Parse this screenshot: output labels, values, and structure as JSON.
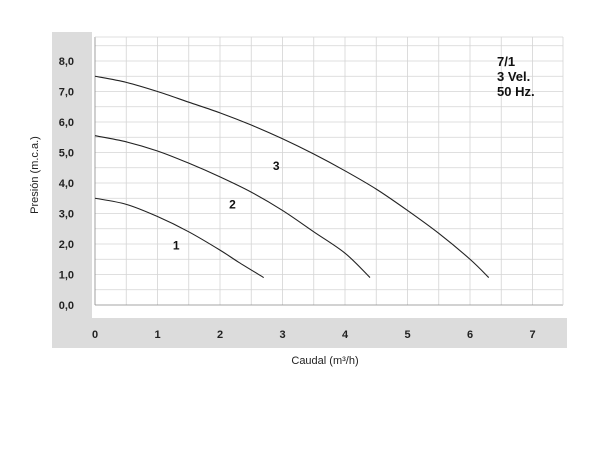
{
  "chart_data": {
    "type": "line",
    "title": "",
    "xlabel": "Caudal (m³/h)",
    "ylabel": "Presión (m.c.a.)",
    "xlim": [
      0,
      7.5
    ],
    "ylim": [
      0,
      8.8
    ],
    "grid": true,
    "x_ticks": [
      0,
      1,
      2,
      3,
      4,
      5,
      6,
      7
    ],
    "x_tick_labels": [
      "0",
      "1",
      "2",
      "3",
      "4",
      "5",
      "6",
      "7"
    ],
    "y_ticks": [
      0,
      1,
      2,
      3,
      4,
      5,
      6,
      7,
      8
    ],
    "y_tick_labels": [
      "0,0",
      "1,0",
      "2,0",
      "3,0",
      "4,0",
      "5,0",
      "6,0",
      "7,0",
      "8,0"
    ],
    "annotation_lines": [
      "7/1",
      "3 Vel.",
      "50 Hz."
    ],
    "series": [
      {
        "name": "1",
        "x": [
          0,
          0.5,
          1.0,
          1.5,
          2.0,
          2.3,
          2.7
        ],
        "y": [
          3.5,
          3.3,
          2.9,
          2.4,
          1.8,
          1.4,
          0.9
        ]
      },
      {
        "name": "2",
        "x": [
          0,
          0.5,
          1.0,
          1.5,
          2.0,
          2.5,
          3.0,
          3.5,
          4.0,
          4.4
        ],
        "y": [
          5.55,
          5.35,
          5.05,
          4.65,
          4.2,
          3.7,
          3.1,
          2.4,
          1.7,
          0.9
        ]
      },
      {
        "name": "3",
        "x": [
          0,
          0.5,
          1.0,
          1.5,
          2.0,
          2.5,
          3.0,
          3.5,
          4.0,
          4.5,
          5.0,
          5.5,
          6.0,
          6.3
        ],
        "y": [
          7.5,
          7.3,
          7.0,
          6.65,
          6.3,
          5.9,
          5.45,
          4.95,
          4.4,
          3.8,
          3.1,
          2.35,
          1.5,
          0.9
        ]
      }
    ],
    "label_positions": [
      {
        "name": "1",
        "x": 1.3,
        "y": 1.95
      },
      {
        "name": "2",
        "x": 2.2,
        "y": 3.3
      },
      {
        "name": "3",
        "x": 2.9,
        "y": 4.55
      }
    ]
  }
}
